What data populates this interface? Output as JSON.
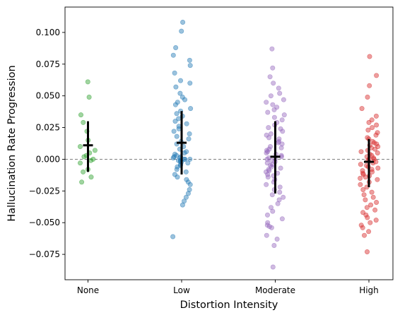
{
  "chart_data": {
    "type": "scatter",
    "title": "",
    "xlabel": "Distortion Intensity",
    "ylabel": "Hallucination Rate Progression",
    "categories": [
      "None",
      "Low",
      "Moderate",
      "High"
    ],
    "ylim": [
      -0.095,
      0.12
    ],
    "yticks": [
      -0.075,
      -0.05,
      -0.025,
      0.0,
      0.025,
      0.05,
      0.075,
      0.1
    ],
    "ytick_labels": [
      "−0.075",
      "−0.050",
      "−0.025",
      "0.000",
      "0.025",
      "0.050",
      "0.075",
      "0.100"
    ],
    "reference_line": {
      "y": 0.0,
      "style": "dashed",
      "color": "#808080"
    },
    "grid": false,
    "legend": "none",
    "series": [
      {
        "category": "None",
        "color": "#2ca02c",
        "mean": 0.011,
        "err_low": -0.01,
        "err_high": 0.03,
        "points": [
          0.061,
          0.049,
          0.035,
          0.029,
          0.022,
          0.015,
          0.01,
          0.007,
          0.005,
          0.003,
          0.002,
          0.0,
          -0.001,
          -0.003,
          -0.008,
          -0.01,
          -0.014,
          -0.018
        ]
      },
      {
        "category": "Low",
        "color": "#1f77b4",
        "mean": 0.013,
        "err_low": -0.012,
        "err_high": 0.038,
        "points": [
          0.108,
          0.101,
          0.088,
          0.082,
          0.078,
          0.074,
          0.068,
          0.062,
          0.06,
          0.057,
          0.052,
          0.049,
          0.047,
          0.045,
          0.043,
          0.04,
          0.038,
          0.036,
          0.034,
          0.032,
          0.03,
          0.028,
          0.026,
          0.024,
          0.022,
          0.02,
          0.018,
          0.016,
          0.014,
          0.012,
          0.01,
          0.008,
          0.006,
          0.005,
          0.004,
          0.003,
          0.002,
          0.002,
          0.001,
          0.001,
          0.0,
          0.0,
          0.0,
          -0.001,
          -0.001,
          -0.002,
          -0.002,
          -0.003,
          -0.004,
          -0.005,
          -0.006,
          -0.008,
          -0.01,
          -0.012,
          -0.014,
          -0.016,
          -0.018,
          -0.02,
          -0.024,
          -0.027,
          -0.03,
          -0.033,
          -0.036,
          -0.061
        ]
      },
      {
        "category": "Moderate",
        "color": "#9467bd",
        "mean": 0.002,
        "err_low": -0.027,
        "err_high": 0.03,
        "points": [
          0.087,
          0.072,
          0.065,
          0.06,
          0.056,
          0.052,
          0.05,
          0.047,
          0.045,
          0.043,
          0.041,
          0.039,
          0.037,
          0.035,
          0.033,
          0.031,
          0.029,
          0.027,
          0.025,
          0.024,
          0.022,
          0.02,
          0.019,
          0.017,
          0.016,
          0.014,
          0.013,
          0.012,
          0.01,
          0.009,
          0.008,
          0.007,
          0.006,
          0.005,
          0.004,
          0.003,
          0.002,
          0.001,
          0.0,
          0.0,
          -0.001,
          -0.002,
          -0.003,
          -0.004,
          -0.005,
          -0.006,
          -0.007,
          -0.008,
          -0.009,
          -0.01,
          -0.011,
          -0.012,
          -0.013,
          -0.014,
          -0.016,
          -0.018,
          -0.02,
          -0.022,
          -0.024,
          -0.026,
          -0.028,
          -0.03,
          -0.032,
          -0.035,
          -0.038,
          -0.041,
          -0.044,
          -0.047,
          -0.05,
          -0.052,
          -0.053,
          -0.054,
          -0.06,
          -0.063,
          -0.068,
          -0.085
        ]
      },
      {
        "category": "High",
        "color": "#d62728",
        "mean": -0.002,
        "err_low": -0.022,
        "err_high": 0.016,
        "points": [
          0.081,
          0.066,
          0.058,
          0.049,
          0.04,
          0.034,
          0.031,
          0.029,
          0.027,
          0.025,
          0.023,
          0.021,
          0.019,
          0.017,
          0.016,
          0.014,
          0.013,
          0.012,
          0.011,
          0.01,
          0.009,
          0.008,
          0.007,
          0.006,
          0.005,
          0.004,
          0.003,
          0.002,
          0.001,
          0.0,
          0.0,
          -0.001,
          -0.002,
          -0.003,
          -0.004,
          -0.005,
          -0.006,
          -0.007,
          -0.008,
          -0.009,
          -0.01,
          -0.011,
          -0.012,
          -0.013,
          -0.014,
          -0.015,
          -0.016,
          -0.018,
          -0.02,
          -0.022,
          -0.024,
          -0.026,
          -0.028,
          -0.03,
          -0.032,
          -0.034,
          -0.036,
          -0.038,
          -0.04,
          -0.042,
          -0.044,
          -0.046,
          -0.048,
          -0.05,
          -0.052,
          -0.054,
          -0.057,
          -0.06,
          -0.073
        ]
      }
    ]
  }
}
